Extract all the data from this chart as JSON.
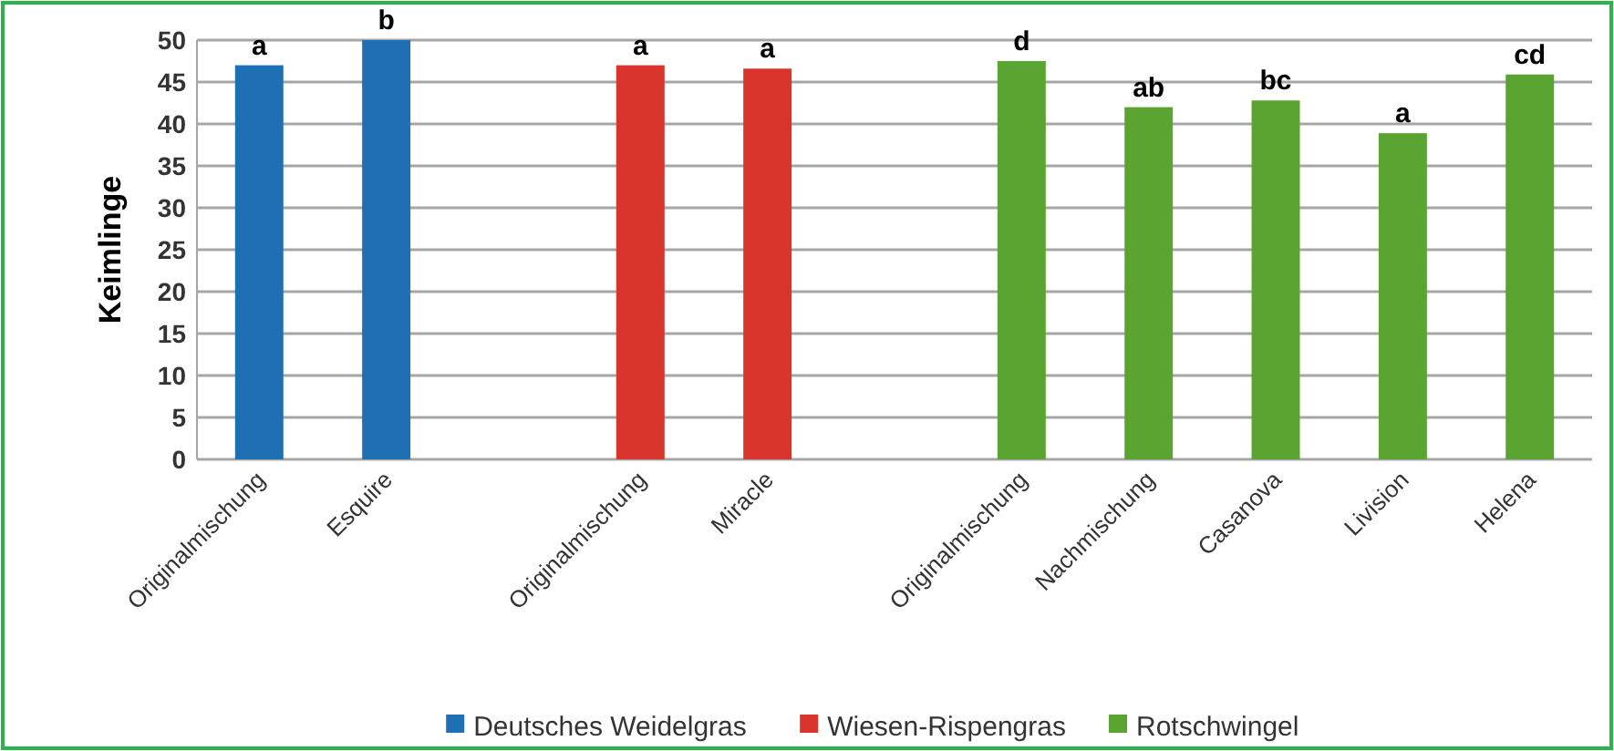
{
  "chart_data": {
    "type": "bar",
    "ylabel": "Keimlinge",
    "categories": [
      "Originalmischung",
      "Esquire",
      null,
      "Originalmischung",
      "Miracle",
      null,
      "Originalmischung",
      "Nachmischung",
      "Casanova",
      "Livision",
      "Helena"
    ],
    "series": [
      {
        "name": "Deutsches Weidelgras",
        "color": "#1f6fb4",
        "values": [
          47,
          50,
          null,
          null,
          null,
          null,
          null,
          null,
          null,
          null,
          null
        ],
        "value_labels": [
          "a",
          "b",
          null,
          null,
          null,
          null,
          null,
          null,
          null,
          null,
          null
        ]
      },
      {
        "name": "Wiesen-Rispengras",
        "color": "#d9342b",
        "values": [
          null,
          null,
          null,
          47,
          46.6,
          null,
          null,
          null,
          null,
          null,
          null
        ],
        "value_labels": [
          null,
          null,
          null,
          "a",
          "a",
          null,
          null,
          null,
          null,
          null,
          null
        ]
      },
      {
        "name": "Rotschwingel",
        "color": "#5aa532",
        "values": [
          null,
          null,
          null,
          null,
          null,
          null,
          47.5,
          42,
          42.8,
          38.9,
          45.9
        ],
        "value_labels": [
          null,
          null,
          null,
          null,
          null,
          null,
          "d",
          "ab",
          "bc",
          "a",
          "cd"
        ]
      }
    ],
    "ylim": [
      0,
      50
    ],
    "yticks": [
      0,
      5,
      10,
      15,
      20,
      25,
      30,
      35,
      40,
      45,
      50
    ],
    "grid": "y",
    "legend": "bottom"
  }
}
